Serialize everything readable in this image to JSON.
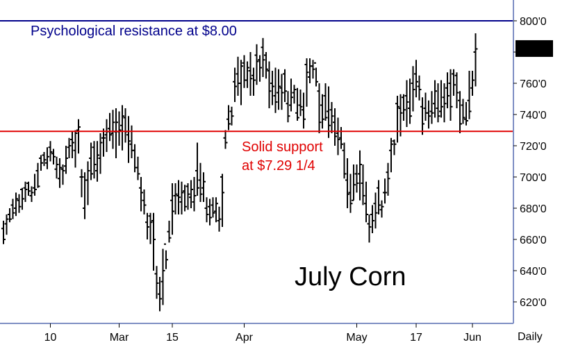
{
  "chart_data": {
    "type": "ohlc",
    "title": "July Corn",
    "frequency_label": "Daily",
    "ylim": [
      610,
      810
    ],
    "y_ticks": [
      {
        "value": 800,
        "label": "800'0"
      },
      {
        "value": 780,
        "label": "780'0"
      },
      {
        "value": 760,
        "label": "760'0"
      },
      {
        "value": 740,
        "label": "740'0"
      },
      {
        "value": 720,
        "label": "720'0"
      },
      {
        "value": 700,
        "label": "700'0"
      },
      {
        "value": 680,
        "label": "680'0"
      },
      {
        "value": 660,
        "label": "660'0"
      },
      {
        "value": 640,
        "label": "640'0"
      },
      {
        "value": 620,
        "label": "620'0"
      }
    ],
    "x_ticks": [
      {
        "label": "10",
        "bar": 15
      },
      {
        "label": "Mar",
        "bar": 37
      },
      {
        "label": "15",
        "bar": 54
      },
      {
        "label": "Apr",
        "bar": 77
      },
      {
        "label": "May",
        "bar": 113
      },
      {
        "label": "17",
        "bar": 132
      },
      {
        "label": "Jun",
        "bar": 150
      }
    ],
    "last_price": {
      "value": 782.25,
      "label": "782'2",
      "color": "#000000"
    },
    "reference_lines": [
      {
        "value": 800,
        "color": "#00008b",
        "label": "Psychological resistance at $8.00"
      },
      {
        "value": 729.25,
        "color": "#e00000",
        "label_lines": [
          "Solid support",
          "at $7.29 1/4"
        ]
      }
    ],
    "bars": [
      [
        667,
        657,
        672,
        660
      ],
      [
        670,
        663,
        676,
        673
      ],
      [
        676,
        671,
        680,
        673
      ],
      [
        682,
        673,
        686,
        677
      ],
      [
        680,
        675,
        690,
        686
      ],
      [
        685,
        677,
        689,
        681
      ],
      [
        692,
        679,
        693,
        686
      ],
      [
        693,
        684,
        697,
        692
      ],
      [
        696,
        688,
        697,
        691
      ],
      [
        688,
        684,
        694,
        690
      ],
      [
        693,
        688,
        702,
        692
      ],
      [
        704,
        693,
        709,
        694
      ],
      [
        712,
        704,
        714,
        709
      ],
      [
        714,
        707,
        716,
        711
      ],
      [
        709,
        705,
        719,
        713
      ],
      [
        719,
        710,
        723,
        716
      ],
      [
        715,
        708,
        718,
        713
      ],
      [
        705,
        699,
        713,
        708
      ],
      [
        699,
        693,
        712,
        706
      ],
      [
        705,
        695,
        708,
        704
      ],
      [
        707,
        702,
        720,
        712
      ],
      [
        719,
        712,
        725,
        720
      ],
      [
        724,
        712,
        729,
        722
      ],
      [
        717,
        706,
        730,
        728
      ],
      [
        730,
        715,
        737,
        732
      ],
      [
        700,
        687,
        705,
        700
      ],
      [
        680,
        673,
        703,
        698
      ],
      [
        698,
        682,
        710,
        704
      ],
      [
        712,
        698,
        722,
        702
      ],
      [
        719,
        699,
        723,
        708
      ],
      [
        704,
        697,
        723,
        714
      ],
      [
        712,
        702,
        728,
        722
      ],
      [
        725,
        713,
        731,
        725
      ],
      [
        727,
        716,
        737,
        729
      ],
      [
        731,
        723,
        741,
        727
      ],
      [
        728,
        718,
        743,
        735
      ],
      [
        729,
        712,
        744,
        735
      ],
      [
        729,
        720,
        742,
        730
      ],
      [
        733,
        717,
        746,
        739
      ],
      [
        738,
        722,
        744,
        729
      ],
      [
        727,
        709,
        739,
        723
      ],
      [
        721,
        712,
        733,
        717
      ],
      [
        717,
        703,
        721,
        706
      ],
      [
        706,
        698,
        713,
        702
      ],
      [
        693,
        678,
        700,
        690
      ],
      [
        685,
        676,
        692,
        682
      ],
      [
        671,
        660,
        677,
        668
      ],
      [
        675,
        657,
        677,
        671
      ],
      [
        672,
        640,
        677,
        660
      ],
      [
        638,
        622,
        643,
        632
      ],
      [
        625,
        614,
        636,
        622
      ],
      [
        633,
        618,
        654,
        640
      ],
      [
        657,
        641,
        653,
        647
      ],
      [
        665,
        658,
        672,
        661
      ],
      [
        685,
        663,
        696,
        678
      ],
      [
        688,
        676,
        696,
        689
      ],
      [
        688,
        676,
        698,
        687
      ],
      [
        684,
        676,
        697,
        690
      ],
      [
        691,
        678,
        695,
        681
      ],
      [
        694,
        679,
        696,
        689
      ],
      [
        687,
        680,
        698,
        692
      ],
      [
        684,
        678,
        700,
        688
      ],
      [
        704,
        688,
        722,
        693
      ],
      [
        698,
        684,
        709,
        689
      ],
      [
        693,
        684,
        703,
        697
      ],
      [
        680,
        671,
        687,
        676
      ],
      [
        681,
        669,
        686,
        674
      ],
      [
        682,
        674,
        687,
        677
      ],
      [
        678,
        671,
        687,
        683
      ],
      [
        672,
        665,
        681,
        673
      ],
      [
        700,
        668,
        702,
        690
      ],
      [
        725,
        718,
        730,
        722
      ],
      [
        737,
        730,
        746,
        734
      ],
      [
        742,
        733,
        745,
        739
      ],
      [
        761,
        748,
        770,
        758
      ],
      [
        766,
        752,
        777,
        760
      ],
      [
        760,
        746,
        775,
        771
      ],
      [
        773,
        757,
        778,
        762
      ],
      [
        762,
        757,
        774,
        770
      ],
      [
        768,
        752,
        780,
        763
      ],
      [
        765,
        752,
        770,
        762
      ],
      [
        778,
        759,
        785,
        774
      ],
      [
        775,
        761,
        778,
        770
      ],
      [
        783,
        764,
        789,
        775
      ],
      [
        778,
        763,
        780,
        769
      ],
      [
        768,
        744,
        774,
        755
      ],
      [
        760,
        746,
        768,
        758
      ],
      [
        752,
        741,
        770,
        748
      ],
      [
        754,
        743,
        769,
        758
      ],
      [
        757,
        743,
        766,
        754
      ],
      [
        766,
        748,
        769,
        755
      ],
      [
        747,
        735,
        755,
        739
      ],
      [
        746,
        742,
        763,
        751
      ],
      [
        754,
        747,
        759,
        756
      ],
      [
        741,
        736,
        757,
        738
      ],
      [
        746,
        739,
        756,
        745
      ],
      [
        743,
        731,
        754,
        737
      ],
      [
        772,
        745,
        776,
        767
      ],
      [
        764,
        760,
        776,
        771
      ],
      [
        771,
        763,
        775,
        769
      ],
      [
        773,
        758,
        770,
        761
      ],
      [
        755,
        728,
        760,
        735
      ],
      [
        746,
        731,
        753,
        737
      ],
      [
        752,
        736,
        760,
        738
      ],
      [
        742,
        725,
        758,
        733
      ],
      [
        743,
        728,
        748,
        739
      ],
      [
        735,
        720,
        744,
        726
      ],
      [
        728,
        714,
        738,
        724
      ],
      [
        725,
        718,
        732,
        721
      ],
      [
        717,
        699,
        722,
        702
      ],
      [
        698,
        680,
        712,
        689
      ],
      [
        690,
        677,
        702,
        683
      ],
      [
        685,
        685,
        708,
        695
      ],
      [
        702,
        690,
        708,
        696
      ],
      [
        702,
        685,
        717,
        708
      ],
      [
        696,
        682,
        708,
        688
      ],
      [
        683,
        671,
        697,
        676
      ],
      [
        670,
        658,
        676,
        668
      ],
      [
        676,
        664,
        682,
        672
      ],
      [
        683,
        667,
        690,
        677
      ],
      [
        693,
        676,
        698,
        682
      ],
      [
        679,
        674,
        685,
        681
      ],
      [
        690,
        683,
        699,
        690
      ],
      [
        703,
        688,
        709,
        699
      ],
      [
        717,
        703,
        725,
        721
      ],
      [
        723,
        714,
        724,
        721
      ],
      [
        747,
        722,
        752,
        745
      ],
      [
        744,
        726,
        753,
        741
      ],
      [
        751,
        736,
        753,
        743
      ],
      [
        752,
        732,
        762,
        748
      ],
      [
        744,
        734,
        763,
        739
      ],
      [
        760,
        742,
        771,
        756
      ],
      [
        766,
        751,
        775,
        761
      ],
      [
        758,
        749,
        765,
        756
      ],
      [
        745,
        727,
        751,
        734
      ],
      [
        744,
        736,
        754,
        741
      ],
      [
        741,
        731,
        749,
        739
      ],
      [
        742,
        734,
        755,
        741
      ],
      [
        747,
        738,
        762,
        755
      ],
      [
        744,
        735,
        760,
        739
      ],
      [
        742,
        738,
        762,
        745
      ],
      [
        751,
        735,
        760,
        747
      ],
      [
        757,
        744,
        767,
        752
      ],
      [
        760,
        736,
        769,
        745
      ],
      [
        766,
        752,
        769,
        759
      ],
      [
        765,
        744,
        767,
        754
      ],
      [
        749,
        728,
        755,
        734
      ],
      [
        746,
        734,
        750,
        738
      ],
      [
        737,
        733,
        748,
        736
      ],
      [
        749,
        737,
        768,
        742
      ],
      [
        757,
        752,
        768,
        762
      ],
      [
        780,
        758,
        792,
        782
      ]
    ]
  }
}
